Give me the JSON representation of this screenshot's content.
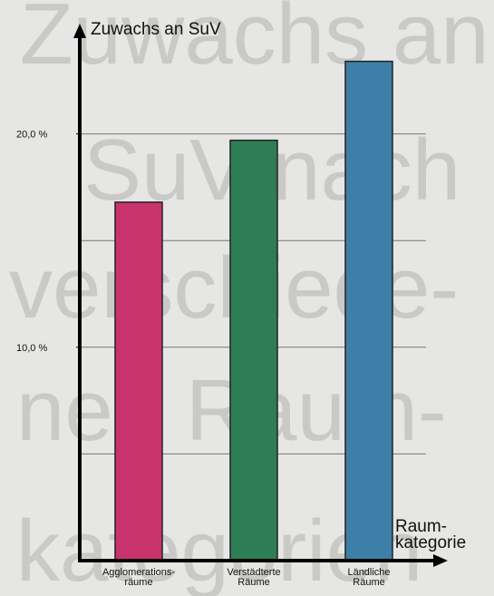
{
  "chart_data": {
    "type": "bar",
    "background_text": [
      "Zuwachs an",
      "SuV nach",
      "verschiede-",
      "nen Raum-",
      "kategorien"
    ],
    "y_label": "Zuwachs an SuV",
    "x_label": "Raum-\nkategorie",
    "categories": [
      "Agglomerations-\nräume",
      "Verstädterte\nRäume",
      "Ländliche\nRäume"
    ],
    "values": [
      16.8,
      19.7,
      23.4
    ],
    "colors": [
      "#c8336e",
      "#2f7d55",
      "#3d7fa8"
    ],
    "ylim": [
      0,
      25
    ],
    "yticks": [
      {
        "value": 10,
        "label": "10,0 %"
      },
      {
        "value": 20,
        "label": "20,0 %"
      }
    ],
    "grid_values": [
      5,
      10,
      15,
      20
    ]
  }
}
